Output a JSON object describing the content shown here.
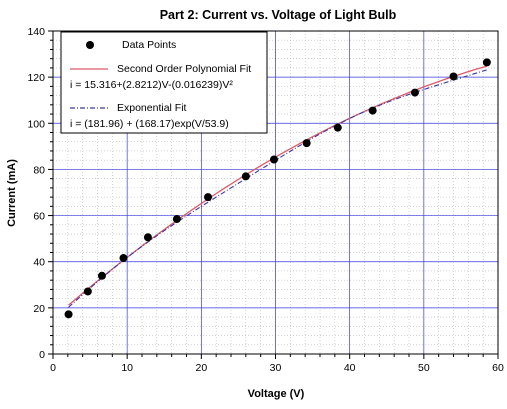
{
  "chart_data": {
    "type": "scatter",
    "title": "Part 2: Current vs. Voltage of Light Bulb",
    "xlabel": "Voltage (V)",
    "ylabel": "Current (mA)",
    "xlim": [
      0,
      60
    ],
    "ylim": [
      0,
      140
    ],
    "x_ticks": [
      0,
      10,
      20,
      30,
      40,
      50,
      60
    ],
    "y_ticks": [
      0,
      20,
      40,
      60,
      80,
      100,
      120,
      140
    ],
    "grid": true,
    "legend_position": "top-left",
    "series": [
      {
        "name": "Data Points",
        "kind": "scatter",
        "color": "#000000",
        "x": [
          2.1,
          4.7,
          6.6,
          9.5,
          12.8,
          16.7,
          20.9,
          26.0,
          29.8,
          34.2,
          38.4,
          43.1,
          48.8,
          54.0,
          58.5
        ],
        "y": [
          17.2,
          27.1,
          33.9,
          41.6,
          50.6,
          58.5,
          68.0,
          77.0,
          84.3,
          91.4,
          98.1,
          105.5,
          113.3,
          120.3,
          126.4
        ]
      },
      {
        "name": "Second Order Polynomial Fit",
        "equation": "i = 15.316+(2.8212)V-(0.016239)V²",
        "kind": "line",
        "color": "#e05a6a",
        "dash": "solid",
        "coefficients": [
          15.316,
          2.8212,
          -0.016239
        ]
      },
      {
        "name": "Exponential Fit",
        "equation": "i = (181.96) + (168.17)exp(V/53.9)",
        "kind": "line",
        "color": "#3a3aa0",
        "dash": "dashdot"
      }
    ]
  },
  "colors": {
    "grid_major": "#3a3ae0",
    "grid_minor": "#b8b8b8",
    "frame": "#000000"
  }
}
